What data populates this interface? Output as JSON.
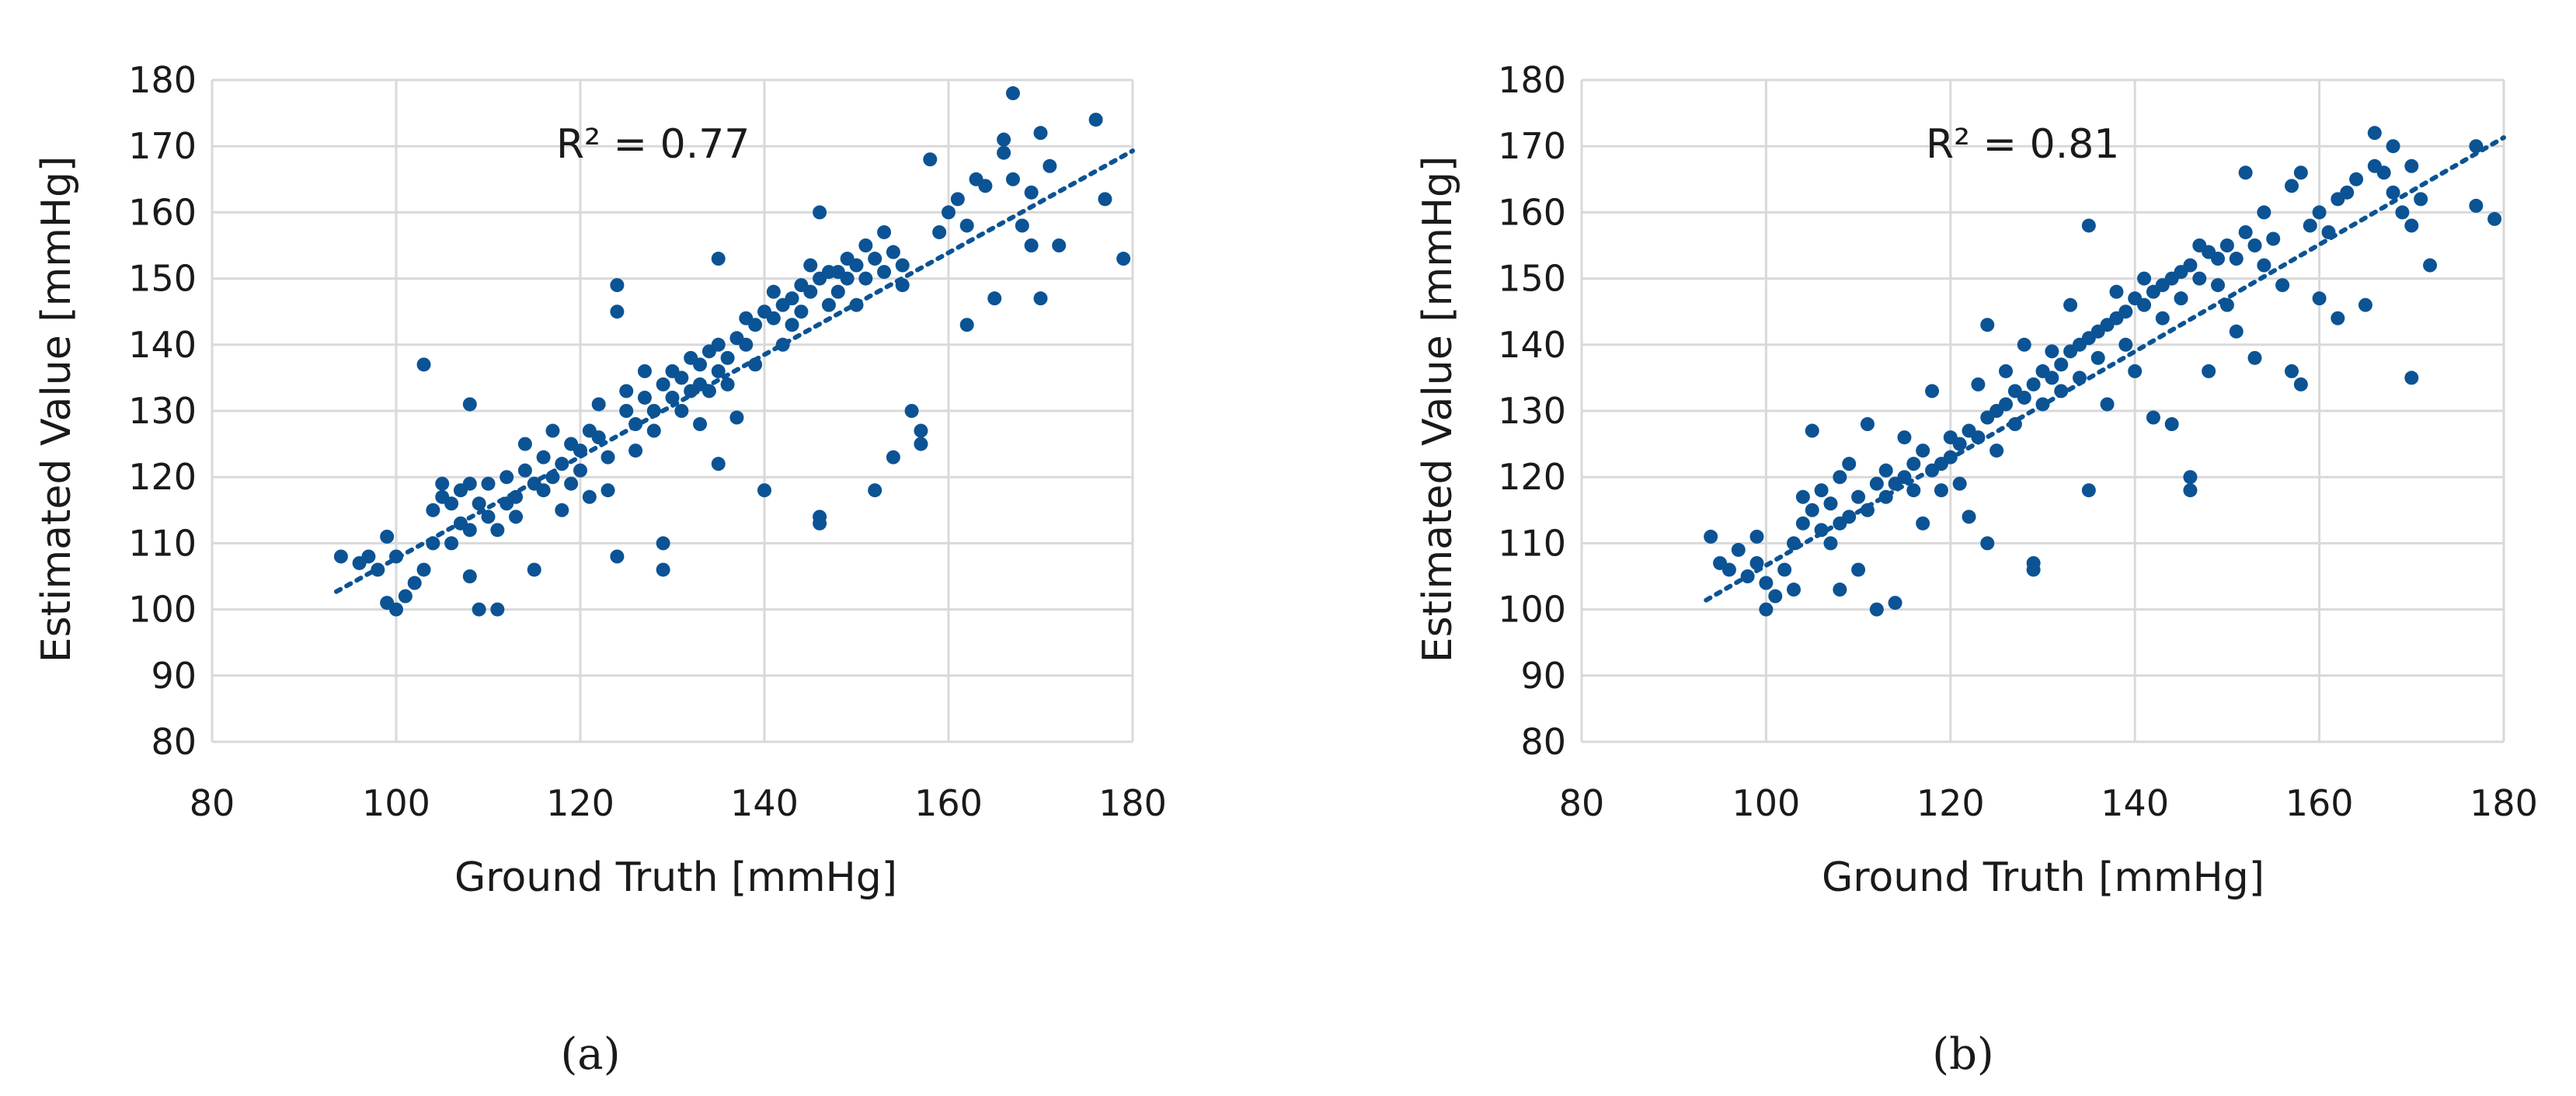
{
  "chart_data": [
    {
      "type": "scatter",
      "panel_label": "(a)",
      "annotation": "R² = 0.77",
      "xlabel": "Ground Truth [mmHg]",
      "ylabel": "Estimated Value [mmHg]",
      "xlim": [
        80,
        180
      ],
      "ylim": [
        80,
        180
      ],
      "xticks": [
        "80",
        "100",
        "120",
        "140",
        "160",
        "180"
      ],
      "yticks": [
        "80",
        "90",
        "100",
        "110",
        "120",
        "130",
        "140",
        "150",
        "160",
        "170",
        "180"
      ],
      "grid": true,
      "marker_color": "#0b5394",
      "trendline": {
        "style": "dotted",
        "x": [
          93.5,
          180
        ],
        "y": [
          102.7,
          169.3
        ]
      },
      "points": [
        [
          94,
          108
        ],
        [
          96,
          107
        ],
        [
          97,
          108
        ],
        [
          98,
          106
        ],
        [
          99,
          111
        ],
        [
          99,
          101
        ],
        [
          100,
          100
        ],
        [
          100,
          108
        ],
        [
          101,
          102
        ],
        [
          102,
          104
        ],
        [
          103,
          106
        ],
        [
          103,
          137
        ],
        [
          104,
          110
        ],
        [
          104,
          115
        ],
        [
          105,
          117
        ],
        [
          105,
          119
        ],
        [
          106,
          116
        ],
        [
          106,
          110
        ],
        [
          107,
          113
        ],
        [
          107,
          118
        ],
        [
          108,
          112
        ],
        [
          108,
          119
        ],
        [
          108,
          131
        ],
        [
          108,
          105
        ],
        [
          109,
          116
        ],
        [
          109,
          100
        ],
        [
          110,
          114
        ],
        [
          110,
          119
        ],
        [
          111,
          112
        ],
        [
          111,
          100
        ],
        [
          112,
          116
        ],
        [
          112,
          120
        ],
        [
          113,
          117
        ],
        [
          113,
          114
        ],
        [
          114,
          121
        ],
        [
          114,
          125
        ],
        [
          115,
          119
        ],
        [
          115,
          106
        ],
        [
          116,
          123
        ],
        [
          116,
          118
        ],
        [
          117,
          120
        ],
        [
          117,
          127
        ],
        [
          118,
          122
        ],
        [
          118,
          115
        ],
        [
          119,
          125
        ],
        [
          119,
          119
        ],
        [
          120,
          124
        ],
        [
          120,
          121
        ],
        [
          121,
          127
        ],
        [
          121,
          117
        ],
        [
          122,
          126
        ],
        [
          122,
          131
        ],
        [
          123,
          123
        ],
        [
          123,
          118
        ],
        [
          124,
          145
        ],
        [
          124,
          149
        ],
        [
          124,
          108
        ],
        [
          125,
          130
        ],
        [
          125,
          133
        ],
        [
          126,
          128
        ],
        [
          126,
          124
        ],
        [
          127,
          132
        ],
        [
          127,
          136
        ],
        [
          128,
          130
        ],
        [
          128,
          127
        ],
        [
          129,
          134
        ],
        [
          129,
          110
        ],
        [
          129,
          106
        ],
        [
          130,
          132
        ],
        [
          130,
          136
        ],
        [
          131,
          135
        ],
        [
          131,
          130
        ],
        [
          132,
          138
        ],
        [
          132,
          133
        ],
        [
          133,
          134
        ],
        [
          133,
          137
        ],
        [
          133,
          128
        ],
        [
          134,
          139
        ],
        [
          134,
          133
        ],
        [
          135,
          140
        ],
        [
          135,
          136
        ],
        [
          135,
          153
        ],
        [
          135,
          122
        ],
        [
          136,
          138
        ],
        [
          136,
          134
        ],
        [
          137,
          141
        ],
        [
          137,
          129
        ],
        [
          138,
          140
        ],
        [
          138,
          144
        ],
        [
          139,
          143
        ],
        [
          139,
          137
        ],
        [
          140,
          145
        ],
        [
          140,
          118
        ],
        [
          141,
          144
        ],
        [
          141,
          148
        ],
        [
          142,
          146
        ],
        [
          142,
          140
        ],
        [
          143,
          147
        ],
        [
          143,
          143
        ],
        [
          144,
          149
        ],
        [
          144,
          145
        ],
        [
          145,
          148
        ],
        [
          145,
          152
        ],
        [
          146,
          150
        ],
        [
          146,
          114
        ],
        [
          146,
          113
        ],
        [
          146,
          160
        ],
        [
          147,
          146
        ],
        [
          147,
          151
        ],
        [
          148,
          151
        ],
        [
          148,
          148
        ],
        [
          149,
          150
        ],
        [
          149,
          153
        ],
        [
          150,
          152
        ],
        [
          150,
          146
        ],
        [
          151,
          150
        ],
        [
          151,
          155
        ],
        [
          152,
          153
        ],
        [
          152,
          118
        ],
        [
          153,
          151
        ],
        [
          153,
          157
        ],
        [
          154,
          154
        ],
        [
          154,
          123
        ],
        [
          155,
          152
        ],
        [
          155,
          149
        ],
        [
          156,
          130
        ],
        [
          157,
          127
        ],
        [
          157,
          125
        ],
        [
          158,
          168
        ],
        [
          159,
          157
        ],
        [
          160,
          160
        ],
        [
          161,
          162
        ],
        [
          162,
          158
        ],
        [
          162,
          143
        ],
        [
          163,
          165
        ],
        [
          164,
          164
        ],
        [
          165,
          147
        ],
        [
          166,
          169
        ],
        [
          166,
          171
        ],
        [
          167,
          178
        ],
        [
          167,
          165
        ],
        [
          168,
          158
        ],
        [
          169,
          163
        ],
        [
          169,
          155
        ],
        [
          170,
          172
        ],
        [
          170,
          147
        ],
        [
          171,
          167
        ],
        [
          172,
          155
        ],
        [
          176,
          174
        ],
        [
          177,
          162
        ],
        [
          179,
          153
        ]
      ]
    },
    {
      "type": "scatter",
      "panel_label": "(b)",
      "annotation": "R² = 0.81",
      "xlabel": "Ground Truth [mmHg]",
      "ylabel": "Estimated Value [mmHg]",
      "xlim": [
        80,
        180
      ],
      "ylim": [
        80,
        180
      ],
      "xticks": [
        "80",
        "100",
        "120",
        "140",
        "160",
        "180"
      ],
      "yticks": [
        "80",
        "90",
        "100",
        "110",
        "120",
        "130",
        "140",
        "150",
        "160",
        "170",
        "180"
      ],
      "grid": true,
      "marker_color": "#0b5394",
      "trendline": {
        "style": "dotted",
        "x": [
          93.5,
          180
        ],
        "y": [
          101.4,
          171.3
        ]
      },
      "points": [
        [
          94,
          111
        ],
        [
          95,
          107
        ],
        [
          96,
          106
        ],
        [
          97,
          109
        ],
        [
          98,
          105
        ],
        [
          99,
          111
        ],
        [
          99,
          107
        ],
        [
          100,
          100
        ],
        [
          100,
          104
        ],
        [
          101,
          102
        ],
        [
          102,
          106
        ],
        [
          103,
          110
        ],
        [
          103,
          103
        ],
        [
          104,
          113
        ],
        [
          104,
          117
        ],
        [
          105,
          115
        ],
        [
          105,
          127
        ],
        [
          106,
          112
        ],
        [
          106,
          118
        ],
        [
          107,
          116
        ],
        [
          107,
          110
        ],
        [
          108,
          113
        ],
        [
          108,
          120
        ],
        [
          108,
          103
        ],
        [
          109,
          114
        ],
        [
          109,
          122
        ],
        [
          110,
          117
        ],
        [
          110,
          106
        ],
        [
          111,
          115
        ],
        [
          111,
          128
        ],
        [
          112,
          119
        ],
        [
          112,
          100
        ],
        [
          113,
          117
        ],
        [
          113,
          121
        ],
        [
          114,
          119
        ],
        [
          114,
          101
        ],
        [
          115,
          120
        ],
        [
          115,
          126
        ],
        [
          116,
          118
        ],
        [
          116,
          122
        ],
        [
          117,
          124
        ],
        [
          117,
          113
        ],
        [
          118,
          121
        ],
        [
          118,
          133
        ],
        [
          119,
          122
        ],
        [
          119,
          118
        ],
        [
          120,
          123
        ],
        [
          120,
          126
        ],
        [
          121,
          125
        ],
        [
          121,
          119
        ],
        [
          122,
          127
        ],
        [
          122,
          114
        ],
        [
          123,
          126
        ],
        [
          123,
          134
        ],
        [
          124,
          129
        ],
        [
          124,
          143
        ],
        [
          124,
          110
        ],
        [
          125,
          130
        ],
        [
          125,
          124
        ],
        [
          126,
          131
        ],
        [
          126,
          136
        ],
        [
          127,
          133
        ],
        [
          127,
          128
        ],
        [
          128,
          132
        ],
        [
          128,
          140
        ],
        [
          129,
          134
        ],
        [
          129,
          107
        ],
        [
          129,
          106
        ],
        [
          130,
          136
        ],
        [
          130,
          131
        ],
        [
          131,
          135
        ],
        [
          131,
          139
        ],
        [
          132,
          137
        ],
        [
          132,
          133
        ],
        [
          133,
          139
        ],
        [
          133,
          146
        ],
        [
          134,
          140
        ],
        [
          134,
          135
        ],
        [
          135,
          141
        ],
        [
          135,
          158
        ],
        [
          135,
          118
        ],
        [
          136,
          142
        ],
        [
          136,
          138
        ],
        [
          137,
          143
        ],
        [
          137,
          131
        ],
        [
          138,
          144
        ],
        [
          138,
          148
        ],
        [
          139,
          145
        ],
        [
          139,
          140
        ],
        [
          140,
          147
        ],
        [
          140,
          136
        ],
        [
          141,
          146
        ],
        [
          141,
          150
        ],
        [
          142,
          148
        ],
        [
          142,
          129
        ],
        [
          143,
          149
        ],
        [
          143,
          144
        ],
        [
          144,
          150
        ],
        [
          144,
          128
        ],
        [
          145,
          151
        ],
        [
          145,
          147
        ],
        [
          146,
          152
        ],
        [
          146,
          118
        ],
        [
          146,
          120
        ],
        [
          147,
          150
        ],
        [
          147,
          155
        ],
        [
          148,
          154
        ],
        [
          148,
          136
        ],
        [
          149,
          153
        ],
        [
          149,
          149
        ],
        [
          150,
          155
        ],
        [
          150,
          146
        ],
        [
          151,
          153
        ],
        [
          151,
          142
        ],
        [
          152,
          157
        ],
        [
          152,
          166
        ],
        [
          153,
          155
        ],
        [
          153,
          138
        ],
        [
          154,
          152
        ],
        [
          154,
          160
        ],
        [
          155,
          156
        ],
        [
          156,
          149
        ],
        [
          157,
          164
        ],
        [
          157,
          136
        ],
        [
          158,
          166
        ],
        [
          158,
          134
        ],
        [
          159,
          158
        ],
        [
          160,
          160
        ],
        [
          160,
          147
        ],
        [
          161,
          157
        ],
        [
          162,
          144
        ],
        [
          162,
          162
        ],
        [
          163,
          163
        ],
        [
          164,
          165
        ],
        [
          165,
          146
        ],
        [
          166,
          172
        ],
        [
          166,
          167
        ],
        [
          167,
          166
        ],
        [
          168,
          163
        ],
        [
          168,
          170
        ],
        [
          169,
          160
        ],
        [
          170,
          158
        ],
        [
          170,
          167
        ],
        [
          170,
          135
        ],
        [
          171,
          162
        ],
        [
          172,
          152
        ],
        [
          177,
          170
        ],
        [
          177,
          161
        ],
        [
          179,
          159
        ]
      ]
    }
  ]
}
